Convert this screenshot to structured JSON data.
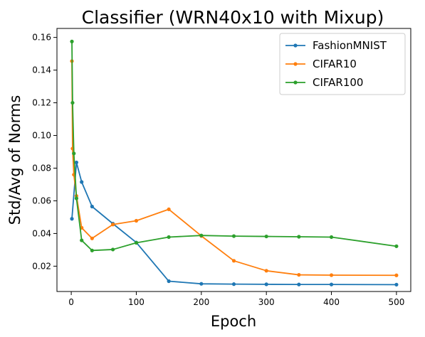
{
  "chart_data": {
    "type": "line",
    "title": "Classifier (WRN40x10 with Mixup)",
    "xlabel": "Epoch",
    "ylabel": "Std/Avg of Norms",
    "xlim": [
      -22,
      522
    ],
    "ylim": [
      0.0045,
      0.1655
    ],
    "xticks": [
      0,
      100,
      200,
      300,
      400,
      500
    ],
    "xtick_labels": [
      "0",
      "100",
      "200",
      "300",
      "400",
      "500"
    ],
    "yticks": [
      0.02,
      0.04,
      0.06,
      0.08,
      0.1,
      0.12,
      0.14,
      0.16
    ],
    "ytick_labels": [
      "0.02",
      "0.04",
      "0.06",
      "0.08",
      "0.10",
      "0.12",
      "0.14",
      "0.16"
    ],
    "grid": false,
    "legend_position": "top-right",
    "series": [
      {
        "name": "FashionMNIST",
        "color": "#1f77b4",
        "x": [
          1,
          8,
          16,
          32,
          64,
          100,
          150,
          200,
          250,
          300,
          350,
          400,
          500
        ],
        "y": [
          0.049,
          0.0835,
          0.0715,
          0.0565,
          0.046,
          0.0345,
          0.0108,
          0.0092,
          0.009,
          0.0089,
          0.0088,
          0.0088,
          0.0087
        ]
      },
      {
        "name": "CIFAR10",
        "color": "#ff7f0e",
        "x": [
          1,
          2,
          4,
          8,
          16,
          32,
          64,
          100,
          150,
          200,
          250,
          300,
          350,
          400,
          500
        ],
        "y": [
          0.1455,
          0.092,
          0.076,
          0.063,
          0.0435,
          0.037,
          0.0455,
          0.0478,
          0.0548,
          0.0385,
          0.0233,
          0.0172,
          0.0147,
          0.0145,
          0.0144
        ]
      },
      {
        "name": "CIFAR100",
        "color": "#2ca02c",
        "x": [
          1,
          2,
          4,
          8,
          16,
          32,
          64,
          100,
          150,
          200,
          250,
          300,
          350,
          400,
          500
        ],
        "y": [
          0.1575,
          0.12,
          0.089,
          0.0615,
          0.0358,
          0.0296,
          0.0302,
          0.0343,
          0.0378,
          0.0388,
          0.0384,
          0.0382,
          0.038,
          0.0378,
          0.0322
        ]
      }
    ]
  }
}
